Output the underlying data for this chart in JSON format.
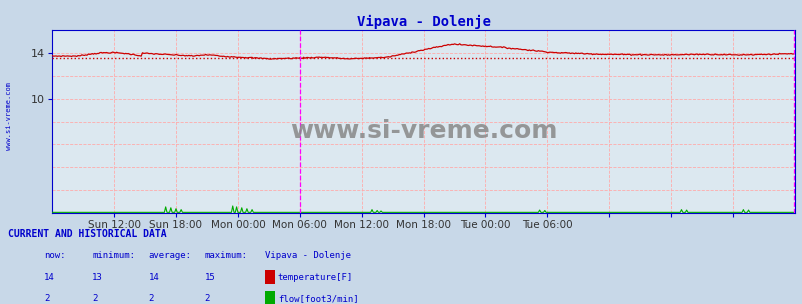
{
  "title": "Vipava - Dolenje",
  "title_color": "#0000cc",
  "fig_bg_color": "#c8d8e8",
  "plot_bg_color": "#dce8f0",
  "grid_color": "#ffaaaa",
  "grid_linestyle": "--",
  "xlim": [
    0,
    576
  ],
  "ylim": [
    0,
    16
  ],
  "ytick_positions": [
    10,
    14
  ],
  "ytick_labels": [
    "10",
    "14"
  ],
  "xtick_positions": [
    48,
    96,
    144,
    192,
    240,
    288,
    336,
    384,
    432,
    480,
    528
  ],
  "xtick_labels": [
    "Sun 12:00",
    "Sun 18:00",
    "Mon 00:00",
    "Mon 06:00",
    "Mon 12:00",
    "Mon 18:00",
    "Tue 00:00",
    "Tue 06:00",
    "",
    "",
    ""
  ],
  "temp_color": "#cc0000",
  "flow_color": "#00aa00",
  "avg_temp": 13.55,
  "avg_line_color": "#cc0000",
  "vline1_x": 192,
  "vline2_x": 575,
  "vline_color": "#ff00ff",
  "axis_color": "#0000cc",
  "watermark": "www.si-vreme.com",
  "watermark_color": "#888888",
  "sidebar_text": "www.si-vreme.com",
  "sidebar_color": "#0000cc",
  "table_header": "CURRENT AND HISTORICAL DATA",
  "table_col_labels": [
    "now:",
    "minimum:",
    "average:",
    "maximum:",
    "Vipava - Dolenje"
  ],
  "table_temp_row": [
    "14",
    "13",
    "14",
    "15",
    "temperature[F]"
  ],
  "table_flow_row": [
    "2",
    "2",
    "2",
    "2",
    "flow[foot3/min]"
  ],
  "table_color": "#0000cc",
  "legend_temp_color": "#cc0000",
  "legend_flow_color": "#00aa00",
  "n_points": 576
}
